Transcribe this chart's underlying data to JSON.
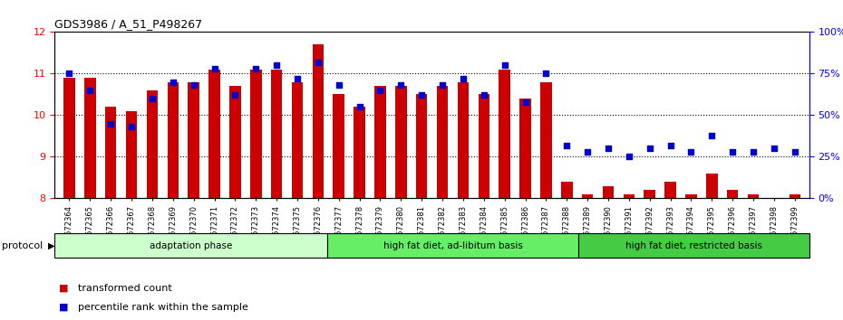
{
  "title": "GDS3986 / A_51_P498267",
  "categories": [
    "GSM672364",
    "GSM672365",
    "GSM672366",
    "GSM672367",
    "GSM672368",
    "GSM672369",
    "GSM672370",
    "GSM672371",
    "GSM672372",
    "GSM672373",
    "GSM672374",
    "GSM672375",
    "GSM672376",
    "GSM672377",
    "GSM672378",
    "GSM672379",
    "GSM672380",
    "GSM672381",
    "GSM672382",
    "GSM672383",
    "GSM672384",
    "GSM672385",
    "GSM672386",
    "GSM672387",
    "GSM672388",
    "GSM672389",
    "GSM672390",
    "GSM672391",
    "GSM672392",
    "GSM672393",
    "GSM672394",
    "GSM672395",
    "GSM672396",
    "GSM672397",
    "GSM672398",
    "GSM672399"
  ],
  "bar_values": [
    10.9,
    10.9,
    10.2,
    10.1,
    10.6,
    10.8,
    10.8,
    11.1,
    10.7,
    11.1,
    11.1,
    10.8,
    11.7,
    10.5,
    10.2,
    10.7,
    10.7,
    10.5,
    10.7,
    10.8,
    10.5,
    11.1,
    10.4,
    10.8,
    8.4,
    8.1,
    8.3,
    8.1,
    8.2,
    8.4,
    8.1,
    8.6,
    8.2,
    8.1,
    8.0,
    8.1
  ],
  "dot_values": [
    75,
    65,
    45,
    43,
    60,
    70,
    68,
    78,
    62,
    78,
    80,
    72,
    82,
    68,
    55,
    65,
    68,
    62,
    68,
    72,
    62,
    80,
    58,
    75,
    32,
    28,
    30,
    25,
    30,
    32,
    28,
    38,
    28,
    28,
    30,
    28
  ],
  "bar_color": "#cc0000",
  "dot_color": "#0000cc",
  "ylim_left": [
    8,
    12
  ],
  "ylim_right": [
    0,
    100
  ],
  "yticks_left": [
    8,
    9,
    10,
    11,
    12
  ],
  "yticks_right": [
    0,
    25,
    50,
    75,
    100
  ],
  "ytick_labels_right": [
    "0%",
    "25%",
    "50%",
    "75%",
    "100%"
  ],
  "groups": [
    {
      "label": "adaptation phase",
      "start": 0,
      "end": 13,
      "color": "#ccffcc"
    },
    {
      "label": "high fat diet, ad-libitum basis",
      "start": 13,
      "end": 25,
      "color": "#66ee66"
    },
    {
      "label": "high fat diet, restricted basis",
      "start": 25,
      "end": 36,
      "color": "#44cc44"
    }
  ],
  "protocol_label": "protocol",
  "legend_items": [
    {
      "label": "transformed count",
      "color": "#cc0000"
    },
    {
      "label": "percentile rank within the sample",
      "color": "#0000cc"
    }
  ],
  "bar_bottom": 8.0,
  "dot_size": 22,
  "gridline_ticks": [
    9,
    10,
    11
  ]
}
